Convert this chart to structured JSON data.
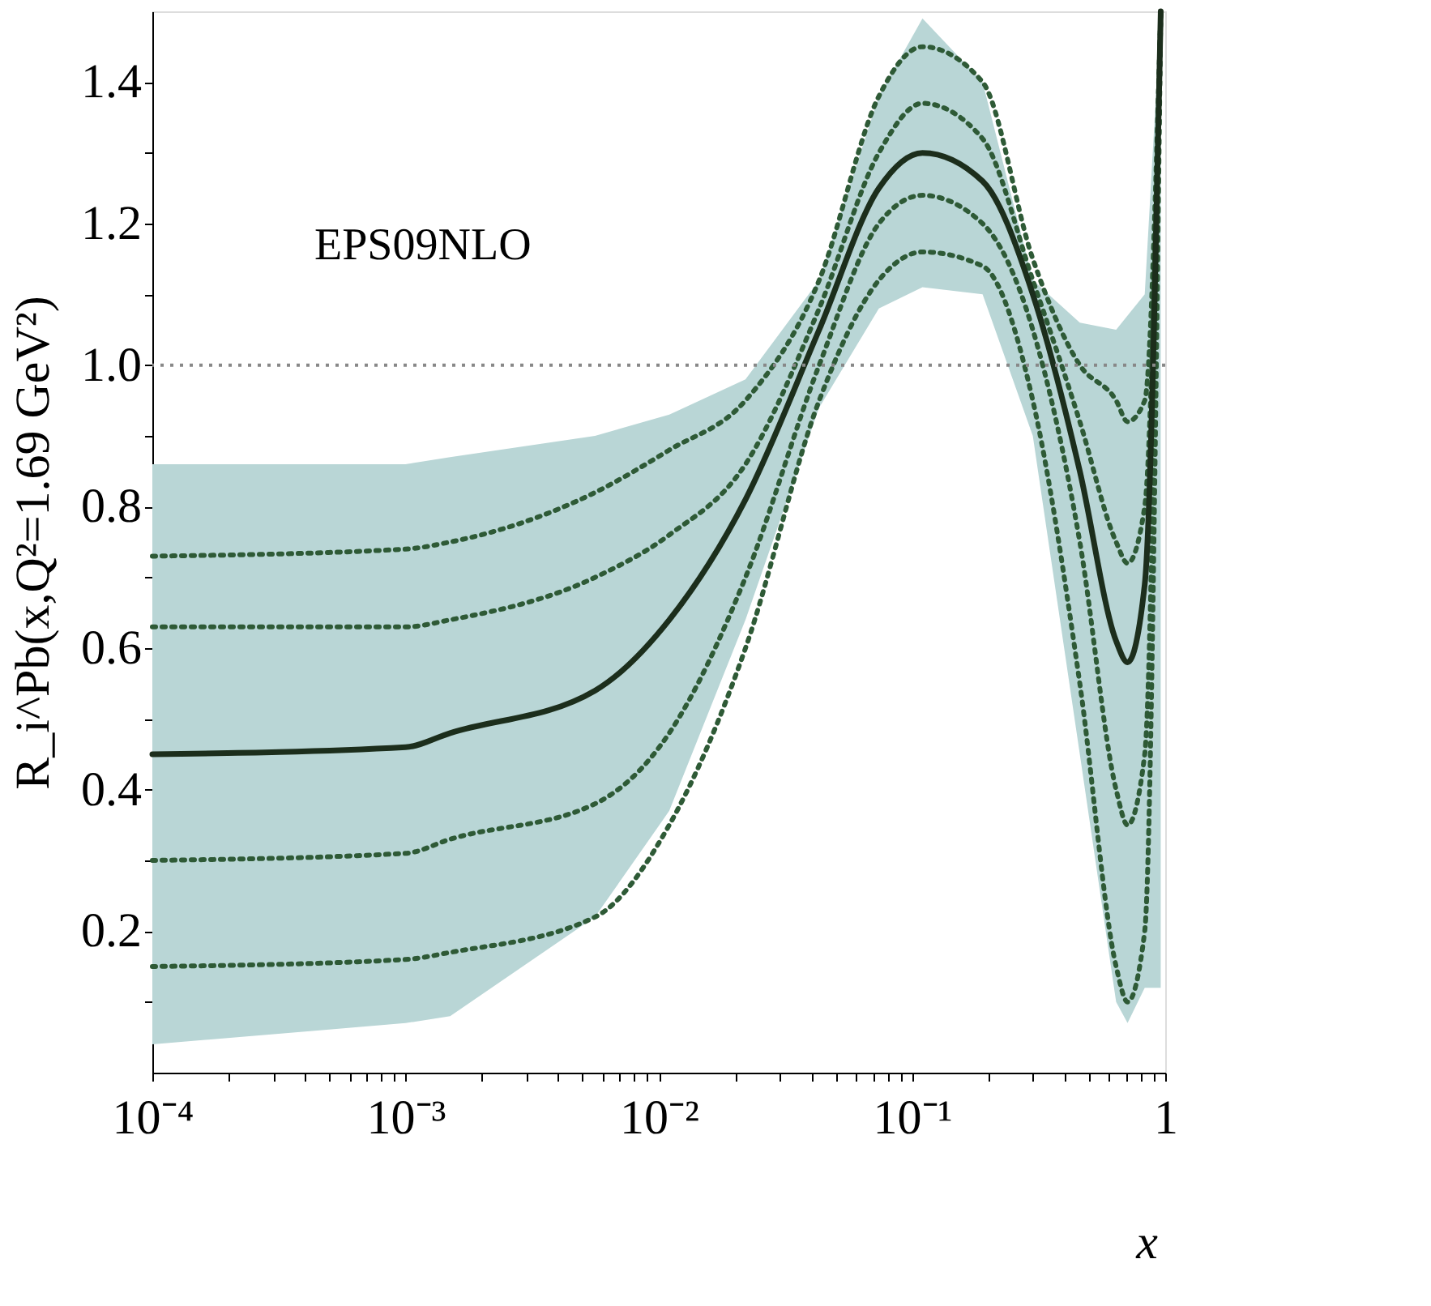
{
  "chart_data": {
    "type": "line",
    "xlabel": "x",
    "ylabel": "R_i^Pb(x,Q²=1.69 GeV²)",
    "annotations": [
      "EPS09NLO"
    ],
    "x": [
      0.0001,
      0.001,
      0.0015,
      0.0056,
      0.011,
      0.022,
      0.043,
      0.074,
      0.11,
      0.19,
      0.3,
      0.46,
      0.64,
      0.71,
      0.83,
      0.96
    ],
    "series": [
      {
        "color": "#2e5a36",
        "line_style": "dotted",
        "values": [
          0.73,
          0.74,
          0.75,
          0.82,
          0.88,
          0.95,
          1.12,
          1.38,
          1.45,
          1.4,
          1.15,
          1.0,
          0.95,
          0.92,
          0.95,
          1.5
        ]
      },
      {
        "color": "#2e5a36",
        "line_style": "dotted",
        "values": [
          0.63,
          0.63,
          0.64,
          0.7,
          0.76,
          0.86,
          1.08,
          1.3,
          1.37,
          1.32,
          1.12,
          0.92,
          0.75,
          0.72,
          0.8,
          1.5
        ]
      },
      {
        "color": "#2e5a36",
        "line_style": "dotted",
        "values": [
          0.3,
          0.31,
          0.33,
          0.38,
          0.48,
          0.7,
          1.0,
          1.2,
          1.24,
          1.2,
          1.05,
          0.75,
          0.4,
          0.35,
          0.45,
          1.5
        ]
      },
      {
        "color": "#2e5a36",
        "line_style": "dotted",
        "values": [
          0.15,
          0.16,
          0.17,
          0.22,
          0.35,
          0.6,
          0.95,
          1.12,
          1.16,
          1.14,
          0.95,
          0.55,
          0.15,
          0.1,
          0.2,
          1.5
        ]
      },
      {
        "color": "#1c2e1c",
        "line_style": "solid",
        "values": [
          0.45,
          0.46,
          0.48,
          0.54,
          0.64,
          0.81,
          1.05,
          1.25,
          1.3,
          1.26,
          1.1,
          0.85,
          0.61,
          0.58,
          0.69,
          1.5
        ],
        "lower": [
          0.04,
          0.07,
          0.08,
          0.22,
          0.37,
          0.64,
          0.94,
          1.08,
          1.11,
          1.1,
          0.9,
          0.45,
          0.1,
          0.07,
          0.12,
          0.12
        ],
        "upper": [
          0.86,
          0.86,
          0.87,
          0.9,
          0.93,
          0.98,
          1.12,
          1.38,
          1.49,
          1.4,
          1.12,
          1.06,
          1.05,
          1.07,
          1.1,
          1.5
        ]
      }
    ],
    "ref_lines": [
      {
        "axis": "y",
        "value": 1.0,
        "color": "#888888",
        "line_style": "dotted"
      }
    ],
    "log": "x",
    "xlim": [
      0.0001,
      1
    ],
    "ylim": [
      0,
      1.5
    ],
    "xticks": [
      {
        "value": 0.0001,
        "label": "10⁻⁴"
      },
      {
        "value": 0.001,
        "label": "10⁻³"
      },
      {
        "value": 0.01,
        "label": "10⁻²"
      },
      {
        "value": 0.1,
        "label": "10⁻¹"
      },
      1,
      {
        "value": 0.0002,
        "label": null
      },
      {
        "value": 0.0003,
        "label": null
      },
      {
        "value": 0.0004,
        "label": null
      },
      {
        "value": 0.0005,
        "label": null
      },
      {
        "value": 0.0006,
        "label": null
      },
      {
        "value": 0.0007,
        "label": null
      },
      {
        "value": 0.0008,
        "label": null
      },
      {
        "value": 0.0009,
        "label": null
      },
      {
        "value": 0.002,
        "label": null
      },
      {
        "value": 0.003,
        "label": null
      },
      {
        "value": 0.004,
        "label": null
      },
      {
        "value": 0.005,
        "label": null
      },
      {
        "value": 0.006,
        "label": null
      },
      {
        "value": 0.007,
        "label": null
      },
      {
        "value": 0.008,
        "label": null
      },
      {
        "value": 0.009,
        "label": null
      },
      {
        "value": 0.02,
        "label": null
      },
      {
        "value": 0.03,
        "label": null
      },
      {
        "value": 0.04,
        "label": null
      },
      {
        "value": 0.05,
        "label": null
      },
      {
        "value": 0.06,
        "label": null
      },
      {
        "value": 0.07,
        "label": null
      },
      {
        "value": 0.08,
        "label": null
      },
      {
        "value": 0.09,
        "label": null
      },
      {
        "value": 0.2,
        "label": null
      },
      {
        "value": 0.3,
        "label": null
      },
      {
        "value": 0.4,
        "label": null
      },
      {
        "value": 0.5,
        "label": null
      },
      {
        "value": 0.6,
        "label": null
      },
      {
        "value": 0.7,
        "label": null
      },
      {
        "value": 0.8,
        "label": null
      },
      {
        "value": 0.9,
        "label": null
      }
    ],
    "yticks": [
      0.2,
      0.4,
      0.6,
      0.8,
      {
        "value": 1.0,
        "label": "1.0"
      },
      1.2,
      1.4,
      {
        "value": 0.1,
        "label": null
      },
      {
        "value": 0.3,
        "label": null
      },
      {
        "value": 0.5,
        "label": null
      },
      {
        "value": 0.7,
        "label": null
      },
      {
        "value": 0.9,
        "label": null
      },
      {
        "value": 1.1,
        "label": null
      },
      {
        "value": 1.3,
        "label": null
      }
    ],
    "grid": false
  }
}
